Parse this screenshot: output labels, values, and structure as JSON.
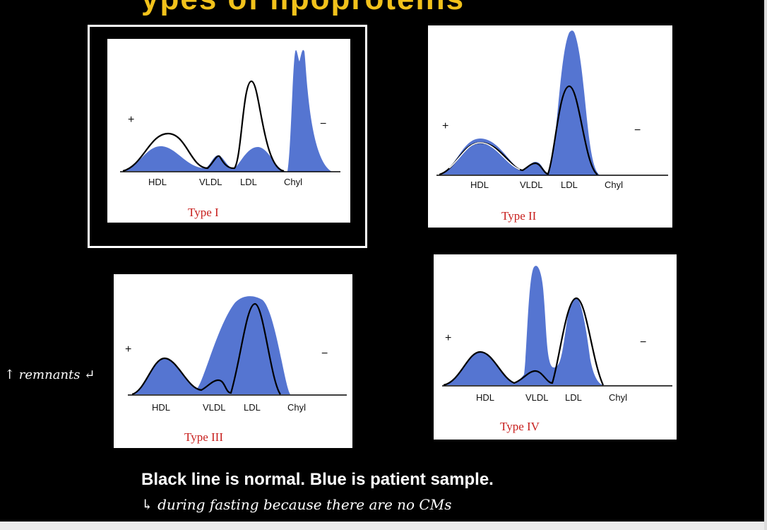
{
  "title_fragment": "ypes of lipoproteins",
  "panels": [
    {
      "id": "type-i",
      "type_label": "Type  I",
      "plus": "+",
      "minus": "−",
      "labels": [
        "HDL",
        "VLDL",
        "LDL",
        "Chyl"
      ]
    },
    {
      "id": "type-ii",
      "type_label": "Type  II",
      "plus": "+",
      "minus": "−",
      "labels": [
        "HDL",
        "VLDL",
        "LDL",
        "Chyl"
      ]
    },
    {
      "id": "type-iii",
      "type_label": "Type  III",
      "plus": "+",
      "minus": "−",
      "labels": [
        "HDL",
        "VLDL",
        "LDL",
        "Chyl"
      ]
    },
    {
      "id": "type-iv",
      "type_label": "Type  IV",
      "plus": "+",
      "minus": "−",
      "labels": [
        "HDL",
        "VLDL",
        "LDL",
        "Chyl"
      ]
    }
  ],
  "caption": "Black line is normal. Blue is patient sample.",
  "annotations": {
    "remnants": "↑ remnants ↵",
    "fasting": "↳ during fasting because there are no CMs"
  },
  "colors": {
    "patient_fill": "#5575d1",
    "normal_line": "#000000",
    "type_label": "#c8201e",
    "highlight": "#ffffff"
  }
}
